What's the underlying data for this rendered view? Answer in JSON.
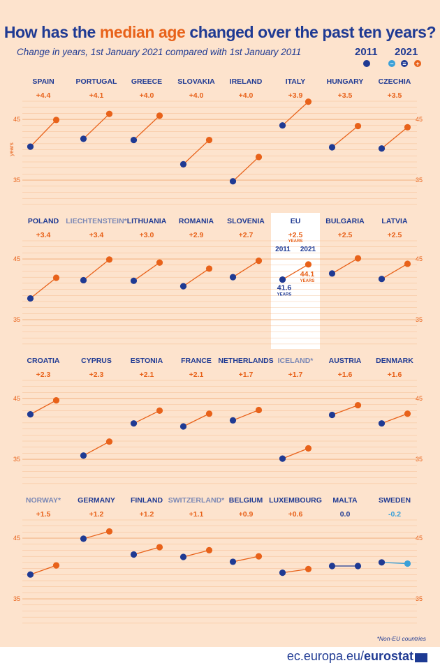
{
  "title": {
    "part1": "How has the ",
    "highlight": "median age",
    "part2": " changed over the past ten years?"
  },
  "subtitle": "Change in years, 1st January 2021 compared with 1st January 2011",
  "legend": {
    "y2011": "2011",
    "y2021": "2021",
    "minus_sign": "−",
    "equal_sign": "=",
    "plus_sign": "+"
  },
  "footnote": "*Non-EU countries",
  "footer": {
    "domain": "ec.europa.eu/",
    "brand": "eurostat"
  },
  "colors": {
    "background": "#fde3cd",
    "blue": "#1f3a93",
    "orange": "#e8621a",
    "light_blue": "#3aa0d8",
    "non_eu_grey": "#7b88b5",
    "grid": "#f0a46a"
  },
  "chart_data": {
    "type": "line",
    "x": [
      "2011",
      "2021"
    ],
    "ylabel": "years",
    "yticks": [
      35,
      45
    ],
    "eu_annotations": {
      "change_unit": "YEARS",
      "value_unit": "YEARS",
      "label_2011": "41.6",
      "label_2021": "44.1"
    },
    "panels": [
      [
        {
          "country": "SPAIN",
          "change": "+4.4",
          "y2011": 40.5,
          "y2021": 44.9,
          "non_eu": false
        },
        {
          "country": "PORTUGAL",
          "change": "+4.1",
          "y2011": 41.8,
          "y2021": 45.9,
          "non_eu": false
        },
        {
          "country": "GREECE",
          "change": "+4.0",
          "y2011": 41.6,
          "y2021": 45.6,
          "non_eu": false
        },
        {
          "country": "SLOVAKIA",
          "change": "+4.0",
          "y2011": 37.6,
          "y2021": 41.6,
          "non_eu": false
        },
        {
          "country": "IRELAND",
          "change": "+4.0",
          "y2011": 34.8,
          "y2021": 38.8,
          "non_eu": false
        },
        {
          "country": "ITALY",
          "change": "+3.9",
          "y2011": 44.0,
          "y2021": 47.9,
          "non_eu": false
        },
        {
          "country": "HUNGARY",
          "change": "+3.5",
          "y2011": 40.4,
          "y2021": 43.9,
          "non_eu": false
        },
        {
          "country": "CZECHIA",
          "change": "+3.5",
          "y2011": 40.2,
          "y2021": 43.7,
          "non_eu": false
        }
      ],
      [
        {
          "country": "POLAND",
          "change": "+3.4",
          "y2011": 38.5,
          "y2021": 41.9,
          "non_eu": false
        },
        {
          "country": "LIECHTENSTEIN*",
          "change": "+3.4",
          "y2011": 41.5,
          "y2021": 44.9,
          "non_eu": true
        },
        {
          "country": "LITHUANIA",
          "change": "+3.0",
          "y2011": 41.4,
          "y2021": 44.4,
          "non_eu": false
        },
        {
          "country": "ROMANIA",
          "change": "+2.9",
          "y2011": 40.5,
          "y2021": 43.4,
          "non_eu": false
        },
        {
          "country": "SLOVENIA",
          "change": "+2.7",
          "y2011": 42.0,
          "y2021": 44.7,
          "non_eu": false
        },
        {
          "country": "EU",
          "change": "+2.5",
          "y2011": 41.6,
          "y2021": 44.1,
          "non_eu": false,
          "highlight": true
        },
        {
          "country": "BULGARIA",
          "change": "+2.5",
          "y2011": 42.6,
          "y2021": 45.1,
          "non_eu": false
        },
        {
          "country": "LATVIA",
          "change": "+2.5",
          "y2011": 41.7,
          "y2021": 44.2,
          "non_eu": false
        }
      ],
      [
        {
          "country": "CROATIA",
          "change": "+2.3",
          "y2011": 42.4,
          "y2021": 44.7,
          "non_eu": false
        },
        {
          "country": "CYPRUS",
          "change": "+2.3",
          "y2011": 35.6,
          "y2021": 37.9,
          "non_eu": false
        },
        {
          "country": "ESTONIA",
          "change": "+2.1",
          "y2011": 40.9,
          "y2021": 43.0,
          "non_eu": false
        },
        {
          "country": "FRANCE",
          "change": "+2.1",
          "y2011": 40.4,
          "y2021": 42.5,
          "non_eu": false
        },
        {
          "country": "NETHERLANDS",
          "change": "+1.7",
          "y2011": 41.4,
          "y2021": 43.1,
          "non_eu": false
        },
        {
          "country": "ICELAND*",
          "change": "+1.7",
          "y2011": 35.1,
          "y2021": 36.8,
          "non_eu": true
        },
        {
          "country": "AUSTRIA",
          "change": "+1.6",
          "y2011": 42.3,
          "y2021": 43.9,
          "non_eu": false
        },
        {
          "country": "DENMARK",
          "change": "+1.6",
          "y2011": 40.9,
          "y2021": 42.5,
          "non_eu": false
        }
      ],
      [
        {
          "country": "NORWAY*",
          "change": "+1.5",
          "y2011": 39.0,
          "y2021": 40.5,
          "non_eu": true
        },
        {
          "country": "GERMANY",
          "change": "+1.2",
          "y2011": 44.9,
          "y2021": 46.1,
          "non_eu": false
        },
        {
          "country": "FINLAND",
          "change": "+1.2",
          "y2011": 42.3,
          "y2021": 43.5,
          "non_eu": false
        },
        {
          "country": "SWITZERLAND*",
          "change": "+1.1",
          "y2011": 41.9,
          "y2021": 43.0,
          "non_eu": true
        },
        {
          "country": "BELGIUM",
          "change": "+0.9",
          "y2011": 41.1,
          "y2021": 42.0,
          "non_eu": false
        },
        {
          "country": "LUXEMBOURG",
          "change": "+0.6",
          "y2011": 39.3,
          "y2021": 39.9,
          "non_eu": false
        },
        {
          "country": "MALTA",
          "change": "0.0",
          "y2011": 40.4,
          "y2021": 40.4,
          "non_eu": false
        },
        {
          "country": "SWEDEN",
          "change": "-0.2",
          "y2011": 41.0,
          "y2021": 40.8,
          "non_eu": false
        }
      ]
    ]
  }
}
